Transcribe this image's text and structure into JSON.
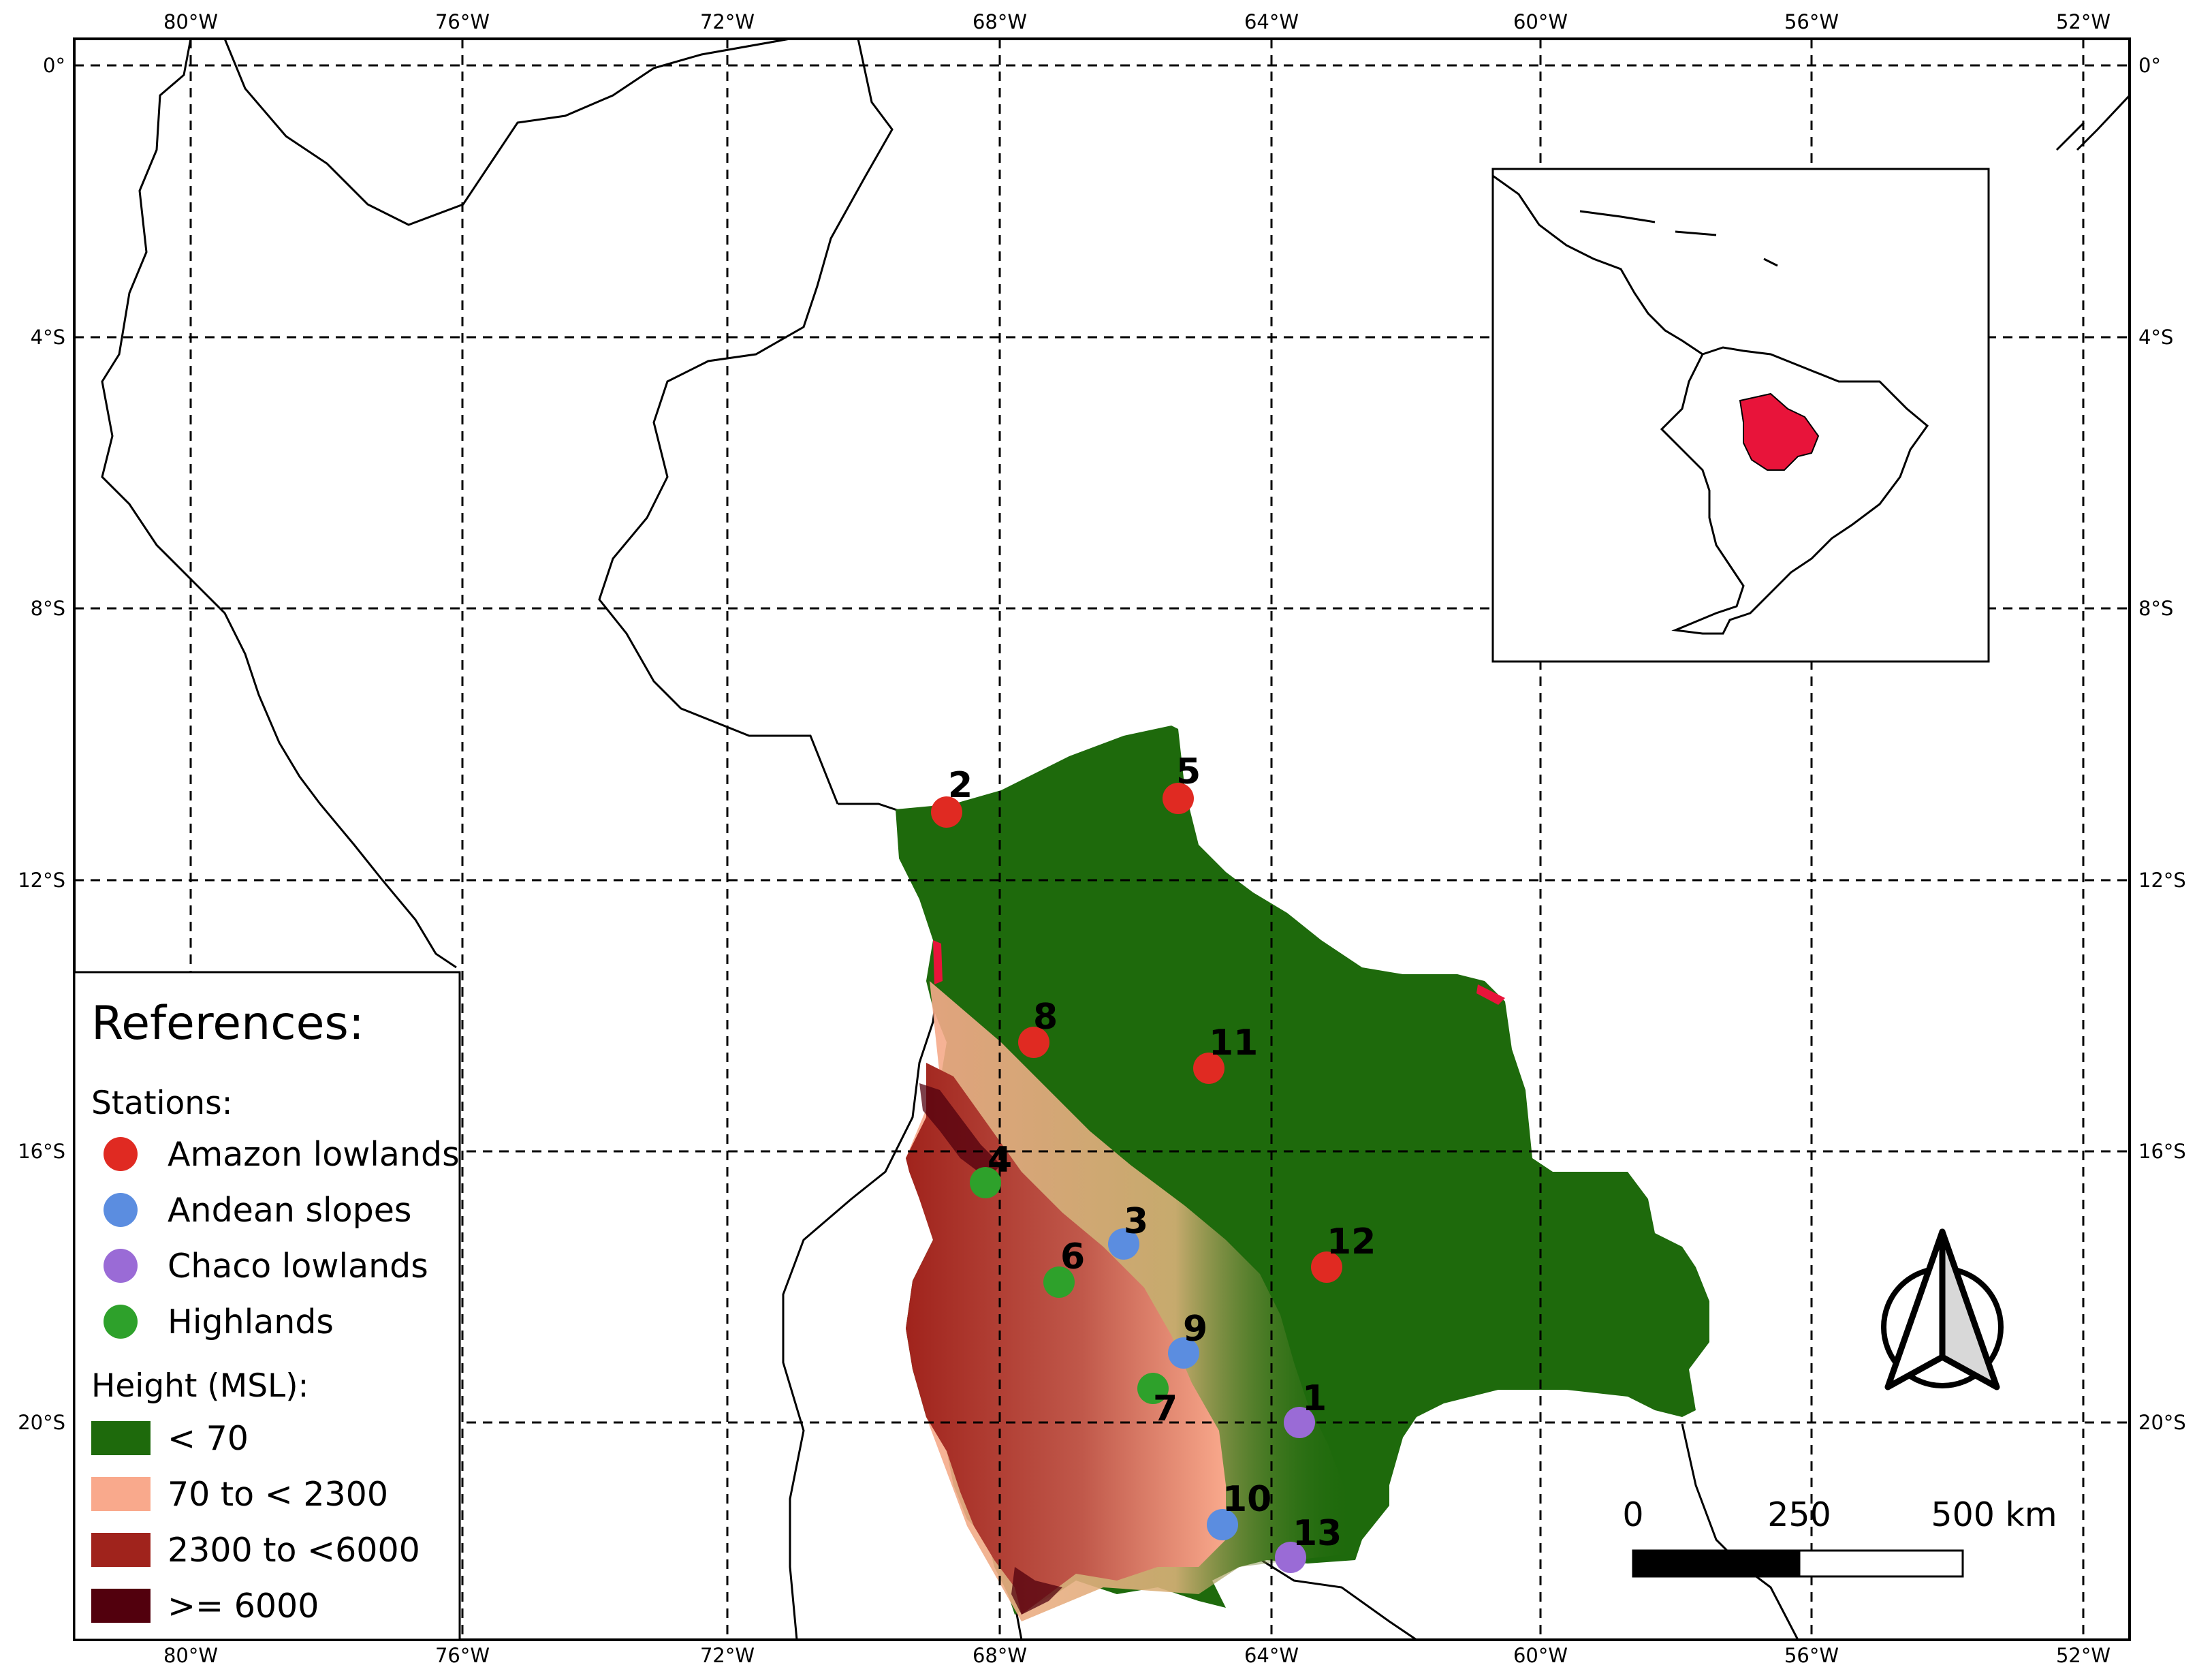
{
  "map": {
    "lon_ticks": [
      "80°W",
      "76°W",
      "72°W",
      "68°W",
      "64°W",
      "60°W",
      "56°W",
      "52°W"
    ],
    "lat_ticks": [
      "0°",
      "4°S",
      "8°S",
      "12°S",
      "16°S",
      "20°S"
    ],
    "colors": {
      "amazon_lowlands": "#e02a22",
      "andean_slopes": "#5b8de0",
      "chaco_lowlands": "#9a6bd6",
      "highlands": "#2ea12b",
      "height_lt70": "#1e6a0c",
      "height_70_2300": "#f9a98c",
      "height_2300_6000": "#a0231c",
      "height_ge6000": "#52000d",
      "inset_highlight": "#e8143a"
    }
  },
  "stations": [
    {
      "id": "1",
      "group": "Chaco lowlands"
    },
    {
      "id": "2",
      "group": "Amazon lowlands"
    },
    {
      "id": "3",
      "group": "Andean slopes"
    },
    {
      "id": "4",
      "group": "Highlands"
    },
    {
      "id": "5",
      "group": "Amazon lowlands"
    },
    {
      "id": "6",
      "group": "Highlands"
    },
    {
      "id": "7",
      "group": "Highlands"
    },
    {
      "id": "8",
      "group": "Amazon lowlands"
    },
    {
      "id": "9",
      "group": "Andean slopes"
    },
    {
      "id": "10",
      "group": "Andean slopes"
    },
    {
      "id": "11",
      "group": "Amazon lowlands"
    },
    {
      "id": "12",
      "group": "Amazon lowlands"
    },
    {
      "id": "13",
      "group": "Chaco lowlands"
    }
  ],
  "legend": {
    "title": "References:",
    "stations_heading": "Stations:",
    "station_items": [
      "Amazon lowlands",
      "Andean slopes",
      "Chaco lowlands",
      "Highlands"
    ],
    "height_heading": "Height (MSL):",
    "height_items": [
      "< 70",
      "70 to < 2300",
      "2300 to <6000",
      ">= 6000"
    ]
  },
  "scale_bar": {
    "labels": [
      "0",
      "250",
      "500 km"
    ]
  },
  "north_arrow": {
    "icon": "north-arrow-icon"
  }
}
